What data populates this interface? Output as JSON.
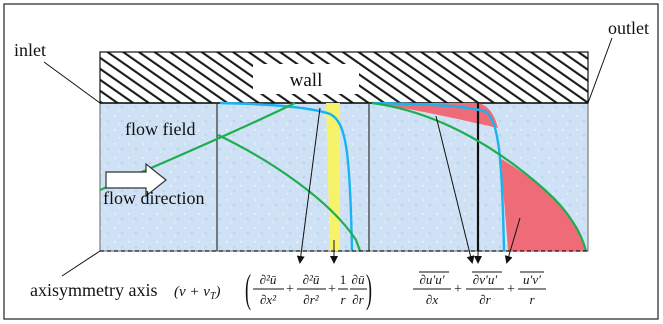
{
  "labels": {
    "inlet": "inlet",
    "outlet": "outlet",
    "wall": "wall",
    "flow_field": "flow field",
    "flow_direction": "flow direction",
    "axis": "axisymmetry axis"
  },
  "equation_left": {
    "prefix": "(v + v",
    "prefix_sub": "T",
    "prefix_close": ")",
    "t1_num": "∂²ū",
    "t1_den": "∂x²",
    "t2_num": "∂²ū",
    "t2_den": "∂r²",
    "t3_a_num": "1",
    "t3_a_den": "r",
    "t3_b_num": "∂ū",
    "t3_b_den": "∂r",
    "plus": "+"
  },
  "equation_right": {
    "t1_num": "∂u′u′",
    "t1_den": "∂x",
    "t2_num": "∂v′u′",
    "t2_den": "∂r",
    "t3_num": "u′v′",
    "t3_den": "r",
    "plus": "+"
  },
  "colors": {
    "field": "#cfe2f5",
    "wall_hatch": "#1a1a1a",
    "profile_blue": "#19b4f0",
    "profile_green": "#1fae4f",
    "viscous_fill": "#f6f36a",
    "reynolds_fill": "#ef6b78"
  }
}
